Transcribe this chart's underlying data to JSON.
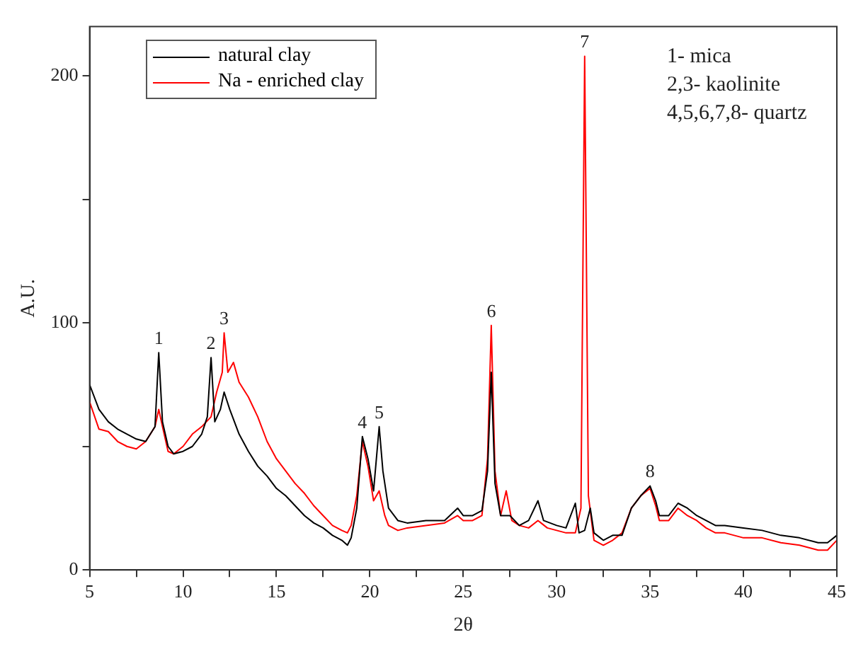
{
  "chart_data": {
    "type": "line",
    "xlabel": "2θ",
    "ylabel": "A.U.",
    "xlim": [
      5,
      45
    ],
    "ylim": [
      0,
      220
    ],
    "xticks": [
      5,
      {
        "value": 7.5,
        "label": null
      },
      10,
      {
        "value": 12.5,
        "label": null
      },
      15,
      {
        "value": 17.5,
        "label": null
      },
      20,
      {
        "value": 22.5,
        "label": null
      },
      25,
      {
        "value": 27.5,
        "label": null
      },
      30,
      {
        "value": 32.5,
        "label": null
      },
      35,
      {
        "value": 37.5,
        "label": null
      },
      40,
      {
        "value": 42.5,
        "label": null
      },
      45
    ],
    "yticks": [
      0,
      {
        "value": 50,
        "label": null
      },
      100,
      {
        "value": 150,
        "label": null
      },
      200
    ],
    "grid": false,
    "legend": "top left",
    "marker": "none",
    "line_style": "solid",
    "series": [
      {
        "name": "natural clay",
        "color": "#000000",
        "x": [
          5,
          5.5,
          6,
          6.5,
          7,
          7.5,
          8,
          8.5,
          8.7,
          8.9,
          9.2,
          9.5,
          10,
          10.5,
          11,
          11.3,
          11.5,
          11.7,
          12,
          12.2,
          12.5,
          13,
          13.5,
          14,
          14.5,
          15,
          15.5,
          16,
          16.5,
          17,
          17.5,
          18,
          18.5,
          18.8,
          19,
          19.3,
          19.6,
          19.9,
          20.2,
          20.5,
          20.7,
          21,
          21.5,
          22,
          23,
          24,
          24.7,
          25,
          25.5,
          26,
          26.3,
          26.5,
          26.7,
          27,
          27.5,
          28,
          28.5,
          29,
          29.3,
          30,
          30.5,
          31,
          31.2,
          31.5,
          31.8,
          32,
          32.5,
          33,
          33.5,
          34,
          34.5,
          35,
          35.3,
          35.5,
          36,
          36.5,
          37,
          37.5,
          38,
          38.5,
          39,
          40,
          41,
          42,
          43,
          44,
          44.5,
          45
        ],
        "values": [
          75,
          65,
          60,
          57,
          55,
          53,
          52,
          58,
          88,
          60,
          50,
          47,
          48,
          50,
          55,
          62,
          86,
          60,
          65,
          72,
          65,
          55,
          48,
          42,
          38,
          33,
          30,
          26,
          22,
          19,
          17,
          14,
          12,
          10,
          13,
          25,
          54,
          45,
          32,
          58,
          40,
          25,
          20,
          19,
          20,
          20,
          25,
          22,
          22,
          24,
          40,
          80,
          35,
          22,
          22,
          18,
          20,
          28,
          20,
          18,
          17,
          27,
          15,
          16,
          25,
          15,
          12,
          14,
          14,
          25,
          30,
          34,
          28,
          22,
          22,
          27,
          25,
          22,
          20,
          18,
          18,
          17,
          16,
          14,
          13,
          11,
          11,
          14
        ]
      },
      {
        "name": "Na - enriched clay",
        "color": "#ff0000",
        "x": [
          5,
          5.5,
          6,
          6.5,
          7,
          7.5,
          8,
          8.5,
          8.7,
          8.9,
          9.2,
          9.5,
          10,
          10.5,
          11,
          11.5,
          11.8,
          12.1,
          12.2,
          12.4,
          12.7,
          13,
          13.5,
          14,
          14.5,
          15,
          15.5,
          16,
          16.5,
          17,
          17.5,
          18,
          18.5,
          18.8,
          19,
          19.3,
          19.6,
          19.9,
          20.2,
          20.5,
          20.8,
          21,
          21.5,
          22,
          23,
          24,
          24.7,
          25,
          25.5,
          26,
          26.3,
          26.5,
          26.7,
          27,
          27.3,
          27.6,
          28,
          28.5,
          29,
          29.5,
          30,
          30.5,
          31,
          31.3,
          31.5,
          31.7,
          32,
          32.5,
          33,
          33.5,
          34,
          34.5,
          35,
          35.3,
          35.5,
          36,
          36.5,
          37,
          37.5,
          38,
          38.5,
          39,
          40,
          41,
          42,
          43,
          44,
          44.5,
          45
        ],
        "values": [
          68,
          57,
          56,
          52,
          50,
          49,
          52,
          58,
          65,
          58,
          48,
          47,
          50,
          55,
          58,
          62,
          72,
          80,
          96,
          80,
          84,
          76,
          70,
          62,
          52,
          45,
          40,
          35,
          31,
          26,
          22,
          18,
          16,
          15,
          18,
          30,
          52,
          42,
          28,
          32,
          22,
          18,
          16,
          17,
          18,
          19,
          22,
          20,
          20,
          22,
          45,
          99,
          40,
          22,
          32,
          20,
          18,
          17,
          20,
          17,
          16,
          15,
          15,
          25,
          208,
          30,
          12,
          10,
          12,
          15,
          25,
          30,
          33,
          26,
          20,
          20,
          25,
          22,
          20,
          17,
          15,
          15,
          13,
          13,
          11,
          10,
          8,
          8,
          12
        ]
      }
    ],
    "annotations": [
      {
        "text": "1",
        "x": 8.7,
        "y": 88
      },
      {
        "text": "2",
        "x": 11.5,
        "y": 86
      },
      {
        "text": "3",
        "x": 12.2,
        "y": 96
      },
      {
        "text": "4",
        "x": 19.6,
        "y": 54
      },
      {
        "text": "5",
        "x": 20.5,
        "y": 58
      },
      {
        "text": "6",
        "x": 26.5,
        "y": 99
      },
      {
        "text": "7",
        "x": 31.5,
        "y": 208
      },
      {
        "text": "8",
        "x": 35,
        "y": 34
      },
      "1- mica",
      "2,3- kaolinite",
      "4,5,6,7,8- quartz"
    ]
  }
}
